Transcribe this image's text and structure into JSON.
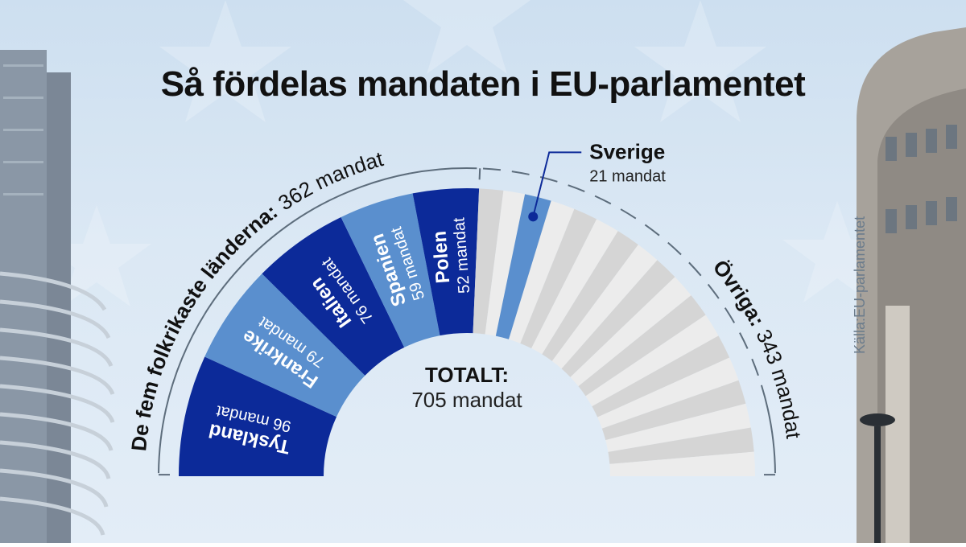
{
  "title": "Så fördelas mandaten i EU-parlamentet",
  "source": "Källa:EU-parlamentet",
  "total_label": "TOTALT:",
  "total_value": "705 mandat",
  "group_left": {
    "name": "De fem folkrikaste länderna:",
    "value": "362 mandat"
  },
  "group_right": {
    "name": "Övriga:",
    "value": "343 mandat"
  },
  "callout": {
    "name": "Sverige",
    "value": "21 mandat"
  },
  "chart_data": {
    "type": "pie",
    "subtype": "semicircle",
    "total": 705,
    "slices": [
      {
        "name": "Tyskland",
        "value": 96,
        "label": "96 mandat",
        "color": "#0c2a99"
      },
      {
        "name": "Frankrike",
        "value": 79,
        "label": "79 mandat",
        "color": "#5a8fce"
      },
      {
        "name": "Italien",
        "value": 76,
        "label": "76 mandat",
        "color": "#0c2a99"
      },
      {
        "name": "Spanien",
        "value": 59,
        "label": "59 mandat",
        "color": "#5a8fce"
      },
      {
        "name": "Polen",
        "value": 52,
        "label": "52 mandat",
        "color": "#0c2a99"
      }
    ],
    "others": {
      "value": 343,
      "highlight": {
        "name": "Sverige",
        "value": 21,
        "color": "#5a8fce"
      }
    },
    "colors": {
      "dark": "#0c2a99",
      "light": "#5a8fce",
      "others_a": "#d5d5d5",
      "others_b": "#ececec"
    }
  }
}
